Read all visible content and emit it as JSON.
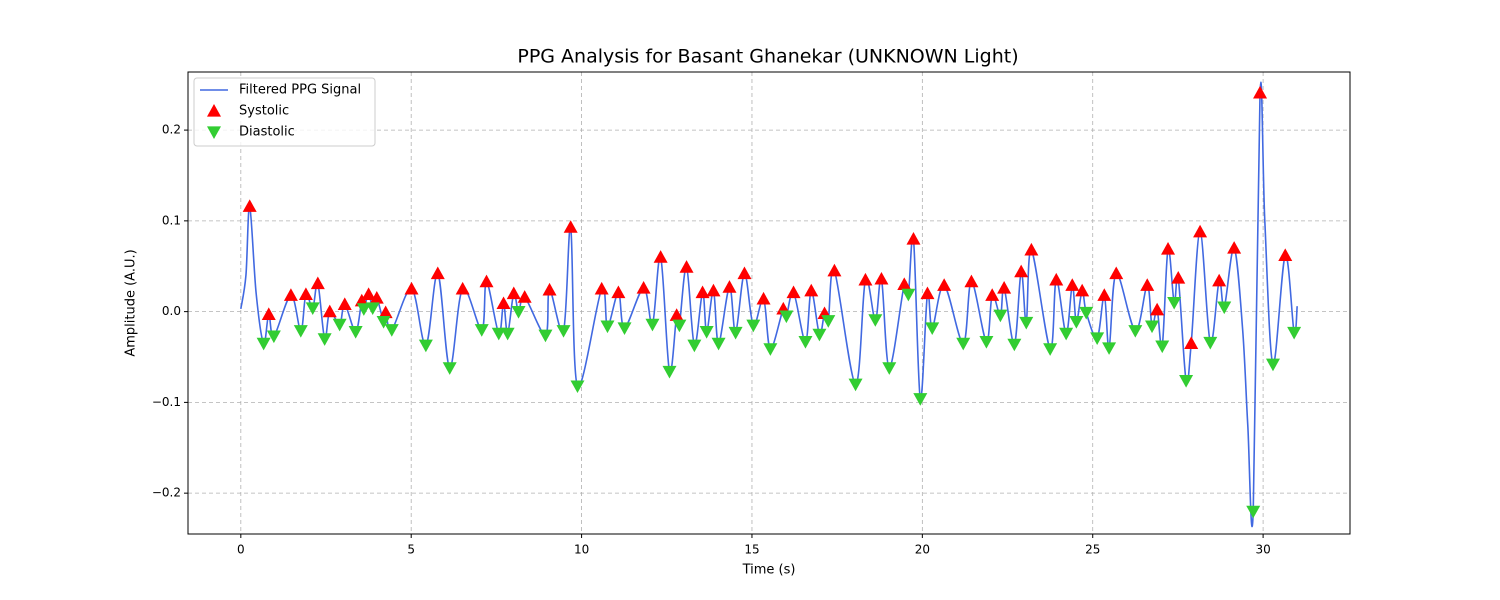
{
  "chart_data": {
    "type": "line",
    "title": "PPG Analysis for Basant Ghanekar (UNKNOWN Light)",
    "x_label": "Time (s)",
    "y_label": "Amplitude (A.U.)",
    "xlim": [
      -1.55,
      32.55
    ],
    "ylim": [
      -0.245,
      0.264
    ],
    "xticks": [
      0,
      5,
      10,
      15,
      20,
      25,
      30
    ],
    "yticks": [
      {
        "value": -0.2,
        "label": "−0.2"
      },
      {
        "value": -0.1,
        "label": "−0.1"
      },
      {
        "value": 0,
        "label": "0.0"
      },
      0.1,
      0.2
    ],
    "grid": true,
    "legend": "upper-left",
    "series": [
      {
        "name": "Filtered PPG Signal",
        "color": "#4169e1",
        "style": "line",
        "x": [
          0,
          0.15,
          0.26,
          0.45,
          0.67,
          0.82,
          0.97,
          1.47,
          1.76,
          1.91,
          2.11,
          2.26,
          2.46,
          2.61,
          2.9,
          3.05,
          3.37,
          3.55,
          3.61,
          3.75,
          3.87,
          3.99,
          4.19,
          4.25,
          4.43,
          5.01,
          5.43,
          5.78,
          6.13,
          6.51,
          7.07,
          7.21,
          7.57,
          7.71,
          7.83,
          8.01,
          8.15,
          8.33,
          8.94,
          9.06,
          9.47,
          9.68,
          9.88,
          10.59,
          10.76,
          11.08,
          11.26,
          11.82,
          12.08,
          12.32,
          12.58,
          12.79,
          12.87,
          13.08,
          13.31,
          13.55,
          13.67,
          13.87,
          14.02,
          14.34,
          14.52,
          14.78,
          15.04,
          15.34,
          15.54,
          15.92,
          16.01,
          16.22,
          16.57,
          16.74,
          16.98,
          17.13,
          17.24,
          17.42,
          18.04,
          18.33,
          18.62,
          18.8,
          19.03,
          19.47,
          19.59,
          19.74,
          19.94,
          20.15,
          20.29,
          20.64,
          21.2,
          21.44,
          21.88,
          22.05,
          22.29,
          22.4,
          22.7,
          22.9,
          23.05,
          23.2,
          23.75,
          23.93,
          24.22,
          24.4,
          24.52,
          24.69,
          24.81,
          25.13,
          25.34,
          25.48,
          25.69,
          26.25,
          26.6,
          26.74,
          26.89,
          27.04,
          27.21,
          27.39,
          27.51,
          27.74,
          27.89,
          28.15,
          28.45,
          28.71,
          28.86,
          29.15,
          29.4,
          29.55,
          29.71,
          29.91,
          30.05,
          30.29,
          30.65,
          30.91,
          31.0
        ],
        "values": [
          0.003,
          0.04,
          0.116,
          0.02,
          -0.035,
          -0.003,
          -0.027,
          0.018,
          -0.021,
          0.019,
          0.004,
          0.031,
          -0.03,
          0.0,
          -0.014,
          0.008,
          -0.022,
          0.012,
          0.003,
          0.019,
          0.004,
          0.015,
          -0.011,
          -0.001,
          -0.02,
          0.025,
          -0.037,
          0.042,
          -0.062,
          0.025,
          -0.02,
          0.033,
          -0.024,
          0.009,
          -0.024,
          0.02,
          0.0,
          0.016,
          -0.026,
          0.024,
          -0.021,
          0.093,
          -0.082,
          0.025,
          -0.016,
          0.021,
          -0.018,
          0.026,
          -0.014,
          0.06,
          -0.066,
          -0.004,
          -0.015,
          0.049,
          -0.037,
          0.021,
          -0.022,
          0.023,
          -0.035,
          0.027,
          -0.023,
          0.042,
          -0.015,
          0.014,
          -0.041,
          0.003,
          -0.005,
          0.021,
          -0.033,
          0.023,
          -0.025,
          -0.002,
          -0.01,
          0.045,
          -0.08,
          0.035,
          -0.009,
          0.036,
          -0.062,
          0.03,
          0.019,
          0.08,
          -0.096,
          0.02,
          -0.018,
          0.029,
          -0.035,
          0.033,
          -0.033,
          0.018,
          -0.004,
          0.026,
          -0.036,
          0.044,
          -0.012,
          0.068,
          -0.041,
          0.035,
          -0.024,
          0.029,
          -0.011,
          0.023,
          -0.001,
          -0.029,
          0.018,
          -0.04,
          0.042,
          -0.021,
          0.029,
          -0.016,
          0.002,
          -0.038,
          0.069,
          0.01,
          0.037,
          -0.076,
          -0.035,
          0.088,
          -0.034,
          0.034,
          0.005,
          0.07,
          -0.02,
          -0.125,
          -0.22,
          0.241,
          0.1,
          -0.058,
          0.062,
          -0.023,
          0.006
        ]
      },
      {
        "name": "Systolic",
        "color": "#ff0000",
        "style": "triangle-up",
        "x": [
          0.26,
          0.82,
          1.47,
          1.91,
          2.26,
          2.61,
          3.05,
          3.55,
          3.75,
          3.99,
          4.25,
          5.01,
          5.78,
          6.51,
          7.21,
          7.71,
          8.01,
          8.33,
          9.06,
          9.68,
          10.59,
          11.08,
          11.82,
          12.32,
          12.79,
          13.08,
          13.55,
          13.87,
          14.34,
          14.78,
          15.34,
          15.92,
          16.22,
          16.74,
          17.13,
          17.42,
          18.33,
          18.8,
          19.47,
          19.74,
          20.15,
          20.64,
          21.44,
          22.05,
          22.4,
          22.9,
          23.2,
          23.93,
          24.4,
          24.69,
          25.34,
          25.69,
          26.6,
          26.89,
          27.21,
          27.51,
          27.89,
          28.15,
          28.71,
          29.15,
          29.91,
          30.65
        ],
        "values": [
          0.116,
          -0.003,
          0.018,
          0.019,
          0.031,
          0.0,
          0.008,
          0.012,
          0.019,
          0.015,
          -0.001,
          0.025,
          0.042,
          0.025,
          0.033,
          0.009,
          0.02,
          0.016,
          0.024,
          0.093,
          0.025,
          0.021,
          0.026,
          0.06,
          -0.004,
          0.049,
          0.021,
          0.023,
          0.027,
          0.042,
          0.014,
          0.003,
          0.021,
          0.023,
          -0.002,
          0.045,
          0.035,
          0.036,
          0.03,
          0.08,
          0.02,
          0.029,
          0.033,
          0.018,
          0.026,
          0.044,
          0.068,
          0.035,
          0.029,
          0.023,
          0.018,
          0.042,
          0.029,
          0.002,
          0.069,
          0.037,
          -0.035,
          0.088,
          0.034,
          0.07,
          0.241,
          0.062
        ]
      },
      {
        "name": "Diastolic",
        "color": "#32cd32",
        "style": "triangle-down",
        "x": [
          0.67,
          0.97,
          1.76,
          2.11,
          2.46,
          2.9,
          3.37,
          3.61,
          3.87,
          4.19,
          4.43,
          5.43,
          6.13,
          7.07,
          7.57,
          7.83,
          8.15,
          8.94,
          9.47,
          9.88,
          10.76,
          11.26,
          12.08,
          12.58,
          12.87,
          13.31,
          13.67,
          14.02,
          14.52,
          15.04,
          15.54,
          16.01,
          16.57,
          16.98,
          17.24,
          18.04,
          18.62,
          19.03,
          19.59,
          19.94,
          20.29,
          21.2,
          21.88,
          22.29,
          22.7,
          23.05,
          23.75,
          24.22,
          24.52,
          24.81,
          25.13,
          25.48,
          26.25,
          26.74,
          27.04,
          27.39,
          27.74,
          28.45,
          28.86,
          29.71,
          30.29,
          30.91
        ],
        "values": [
          -0.035,
          -0.027,
          -0.021,
          0.004,
          -0.03,
          -0.014,
          -0.022,
          0.003,
          0.004,
          -0.011,
          -0.02,
          -0.037,
          -0.062,
          -0.02,
          -0.024,
          -0.024,
          0.0,
          -0.026,
          -0.021,
          -0.082,
          -0.016,
          -0.018,
          -0.014,
          -0.066,
          -0.015,
          -0.037,
          -0.022,
          -0.035,
          -0.023,
          -0.015,
          -0.041,
          -0.005,
          -0.033,
          -0.025,
          -0.01,
          -0.08,
          -0.009,
          -0.062,
          0.019,
          -0.096,
          -0.018,
          -0.035,
          -0.033,
          -0.004,
          -0.036,
          -0.012,
          -0.041,
          -0.024,
          -0.011,
          -0.001,
          -0.029,
          -0.04,
          -0.021,
          -0.016,
          -0.038,
          0.01,
          -0.076,
          -0.034,
          0.005,
          -0.22,
          -0.058,
          -0.023
        ]
      }
    ]
  }
}
